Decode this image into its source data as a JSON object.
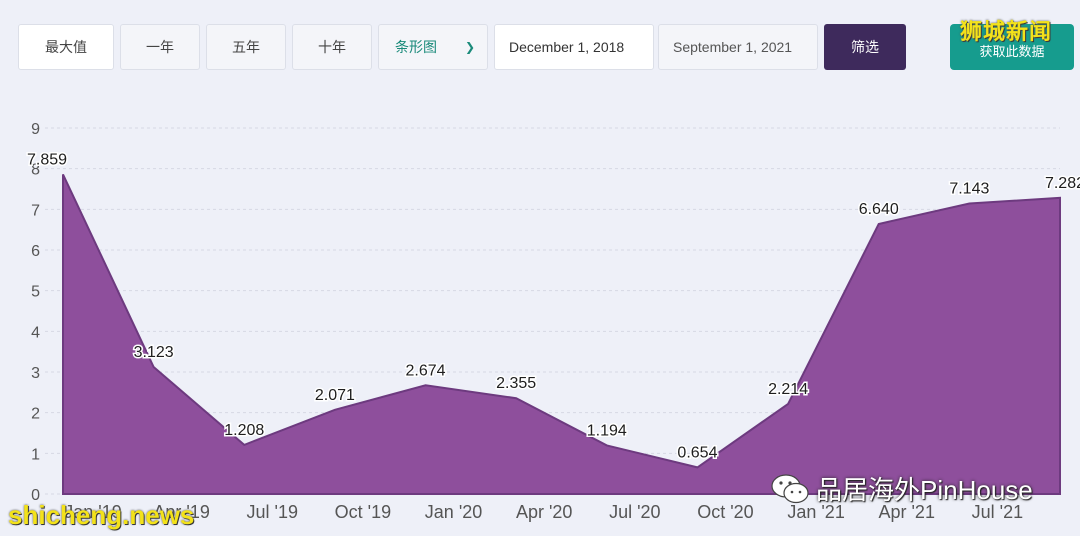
{
  "toolbar": {
    "max_label": "最大值",
    "one_year_label": "一年",
    "five_year_label": "五年",
    "ten_year_label": "十年",
    "chart_type_value": "条形图",
    "start_date": "December 1, 2018",
    "end_date": "September 1, 2021",
    "filter_label": "筛选",
    "fetch_label": "获取此数据"
  },
  "watermarks": {
    "top_right": "狮城新闻",
    "bottom_left": "shicheng.news",
    "bottom_right": "品居海外PinHouse"
  },
  "colors": {
    "area_fill": "#8e4f9c",
    "area_stroke": "#6d3a7f",
    "background": "#eef0f8",
    "filter_button": "#3e2a5c",
    "fetch_button": "#169c8e"
  },
  "chart_data": {
    "type": "area",
    "x_labels": [
      "Jan '19",
      "Apr '19",
      "Jul '19",
      "Oct '19",
      "Jan '20",
      "Apr '20",
      "Jul '20",
      "Oct '20",
      "Jan '21",
      "Apr '21",
      "Jul '21",
      ""
    ],
    "x": [
      "2018-12",
      "2019-03",
      "2019-06",
      "2019-09",
      "2019-12",
      "2020-03",
      "2020-06",
      "2020-09",
      "2020-12",
      "2021-03",
      "2021-06",
      "2021-09"
    ],
    "values": [
      7.859,
      3.123,
      1.208,
      2.071,
      2.674,
      2.355,
      1.194,
      0.654,
      2.214,
      6.64,
      7.143,
      7.282
    ],
    "value_labels": [
      "7.859",
      "3.123",
      "1.208",
      "2.071",
      "2.674",
      "2.355",
      "1.194",
      "0.654",
      "2.214",
      "6.640",
      "7.143",
      "7.282"
    ],
    "y_ticks": [
      "0",
      "1",
      "2",
      "3",
      "4",
      "5",
      "6",
      "7",
      "8",
      "9"
    ],
    "ylim": [
      0,
      9
    ],
    "grid": true
  }
}
